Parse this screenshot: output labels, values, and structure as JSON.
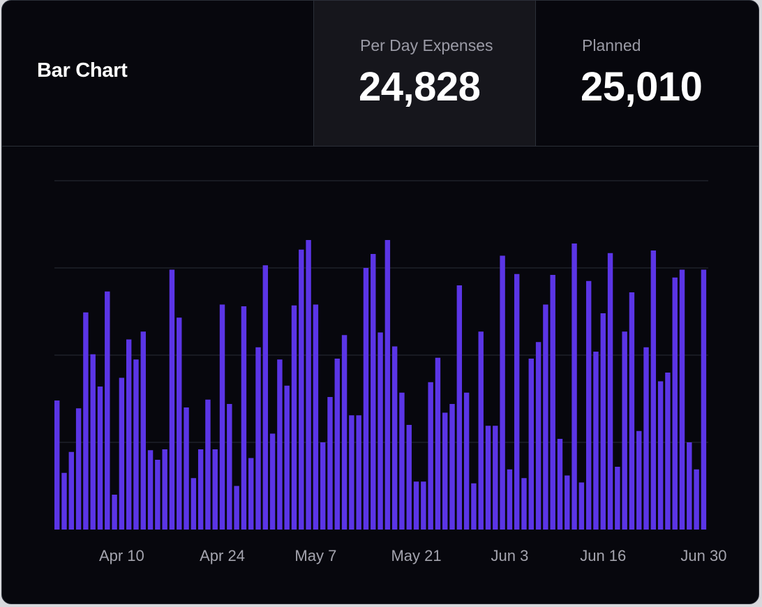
{
  "header": {
    "title": "Bar Chart",
    "stats": [
      {
        "label": "Per Day Expenses",
        "value": "24,828"
      },
      {
        "label": "Planned",
        "value": "25,010"
      }
    ]
  },
  "colors": {
    "bar": "#5b35e6",
    "grid": "#1f2029",
    "background": "#07070d",
    "tick": "#a4a4ae"
  },
  "chart_data": {
    "type": "bar",
    "title": "",
    "xlabel": "",
    "ylabel": "",
    "ylim": [
      0,
      4
    ],
    "grid": "horizontal",
    "legend": "none",
    "x_start": "Apr 1",
    "x_end": "Jun 30",
    "tick_labels": [
      {
        "label": "Apr 10",
        "index": 9
      },
      {
        "label": "Apr 24",
        "index": 23
      },
      {
        "label": "May 7",
        "index": 36
      },
      {
        "label": "May 21",
        "index": 50
      },
      {
        "label": "Jun 3",
        "index": 63
      },
      {
        "label": "Jun 16",
        "index": 76
      },
      {
        "label": "Jun 30",
        "index": 90
      }
    ],
    "values": [
      1.48,
      0.65,
      0.89,
      1.39,
      2.49,
      2.01,
      1.64,
      2.73,
      0.4,
      1.74,
      2.18,
      1.95,
      2.27,
      0.91,
      0.8,
      0.92,
      2.98,
      2.43,
      1.4,
      0.59,
      0.92,
      1.49,
      0.92,
      2.58,
      1.44,
      0.5,
      2.56,
      0.82,
      2.09,
      3.03,
      1.1,
      1.95,
      1.65,
      2.57,
      3.21,
      3.32,
      2.58,
      1.0,
      1.52,
      1.96,
      2.23,
      1.31,
      1.31,
      3.0,
      3.16,
      2.26,
      3.32,
      2.1,
      1.57,
      1.2,
      0.55,
      0.55,
      1.69,
      1.97,
      1.34,
      1.44,
      2.8,
      1.57,
      0.53,
      2.27,
      1.19,
      1.19,
      3.14,
      0.69,
      2.93,
      0.59,
      1.96,
      2.15,
      2.58,
      2.92,
      1.04,
      0.62,
      3.28,
      0.54,
      2.85,
      2.04,
      2.48,
      3.17,
      0.72,
      2.27,
      2.72,
      1.13,
      2.09,
      3.2,
      1.7,
      1.8,
      2.89,
      2.98,
      1.0,
      0.69,
      2.98
    ]
  }
}
